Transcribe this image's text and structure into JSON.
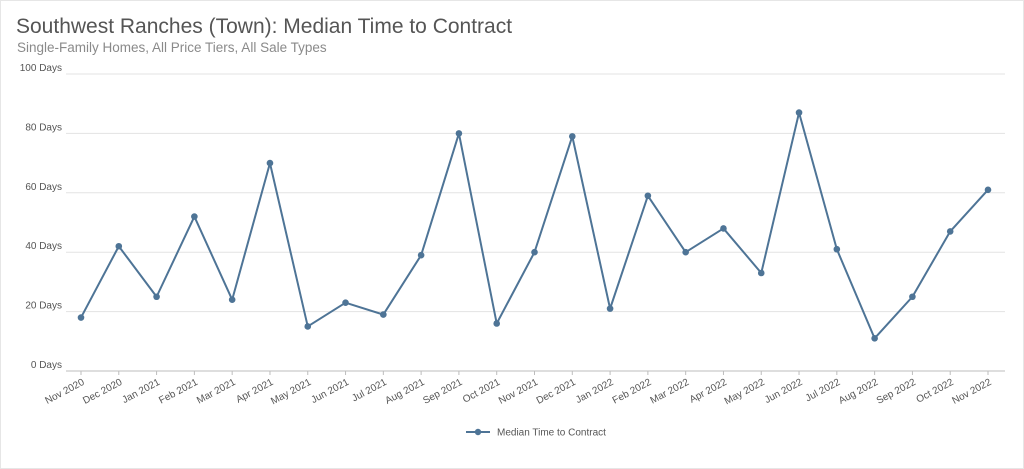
{
  "chart_data": {
    "type": "line",
    "title": "Southwest Ranches (Town): Median Time to Contract",
    "subtitle": "Single-Family Homes, All Price Tiers, All Sale Types",
    "categories": [
      "Nov 2020",
      "Dec 2020",
      "Jan 2021",
      "Feb 2021",
      "Mar 2021",
      "Apr 2021",
      "May 2021",
      "Jun 2021",
      "Jul 2021",
      "Aug 2021",
      "Sep 2021",
      "Oct 2021",
      "Nov 2021",
      "Dec 2021",
      "Jan 2022",
      "Feb 2022",
      "Mar 2022",
      "Apr 2022",
      "May 2022",
      "Jun 2022",
      "Jul 2022",
      "Aug 2022",
      "Sep 2022",
      "Oct 2022",
      "Nov 2022"
    ],
    "series": [
      {
        "name": "Median Time to Contract",
        "values": [
          18,
          42,
          25,
          52,
          24,
          70,
          15,
          23,
          19,
          39,
          80,
          16,
          40,
          79,
          21,
          59,
          40,
          48,
          33,
          87,
          41,
          11,
          25,
          47,
          61
        ]
      }
    ],
    "ylim": [
      0,
      100
    ],
    "yticks": [
      {
        "value": 0,
        "label": "0 Days"
      },
      {
        "value": 20,
        "label": "20 Days"
      },
      {
        "value": 40,
        "label": "40 Days"
      },
      {
        "value": 60,
        "label": "60 Days"
      },
      {
        "value": 80,
        "label": "80 Days"
      },
      {
        "value": 100,
        "label": "100 Days"
      }
    ],
    "grid": true,
    "legend": "bottom-center",
    "colors": {
      "line": "#4e7496",
      "grid": "#e3e3e3",
      "axis": "#bdbdbd"
    }
  }
}
